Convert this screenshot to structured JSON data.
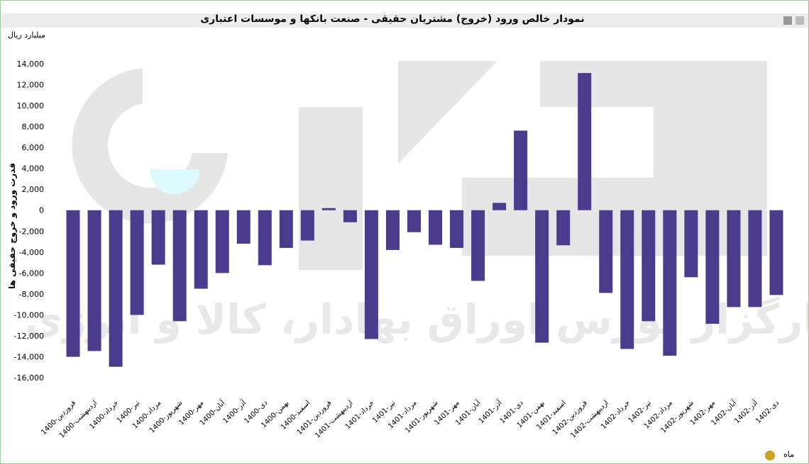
{
  "chart_data": {
    "type": "bar",
    "title": "نمودار خالص ورود (خروج) مشتریان حقیقی - صنعت بانکها و موسسات اعتباری",
    "unit_label": "میلیارد ریال",
    "y_label": "قدرت ورود و خروج حقیقی ها",
    "x_label": "ماه",
    "watermark": "کارگزار بورس اوراق بهادار، کالا و انرژی",
    "color": "#4b3b8c",
    "categories": [
      "1400-فروردین",
      "1400-اردیبهشت",
      "1400-خرداد",
      "1400-تیر",
      "1400-مرداد",
      "1400-شهریور",
      "1400-مهر",
      "1400-آبان",
      "1400-آذر",
      "1400-دی",
      "1400-بهمن",
      "1400-اسفند",
      "1401-فروردین",
      "1401-اردیبهشت",
      "1401-خرداد",
      "1401-تیر",
      "1401-مرداد",
      "1401-شهریور",
      "1401-مهر",
      "1401-آبان",
      "1401-آذر",
      "1401-دی",
      "1401-بهمن",
      "1401-اسفند",
      "1402-فروردین",
      "1402-اردیبهشت",
      "1402-خرداد",
      "1402-تیر",
      "1402-مرداد",
      "1402-شهریور",
      "1402-مهر",
      "1402-آبان",
      "1402-آذر",
      "1402-دی"
    ],
    "values": [
      -14000,
      -13450,
      -14950,
      -10000,
      -5200,
      -10600,
      -7500,
      -6000,
      -3200,
      -5250,
      -3600,
      -2900,
      200,
      -1150,
      -12300,
      -3800,
      -2100,
      -3300,
      -3600,
      -6750,
      700,
      7600,
      -12650,
      -3350,
      13100,
      -7900,
      -13250,
      -10600,
      -13900,
      -6400,
      -10850,
      -9250,
      -9250,
      -8100
    ],
    "ylim": [
      -17000,
      15000
    ],
    "yticks": [
      {
        "value": -16000,
        "label": "-16,000"
      },
      {
        "value": -14000,
        "label": "-14,000"
      },
      {
        "value": -12000,
        "label": "-12,000"
      },
      {
        "value": -10000,
        "label": "-10,000"
      },
      {
        "value": -8000,
        "label": "-8,000"
      },
      {
        "value": -6000,
        "label": "-6,000"
      },
      {
        "value": -4000,
        "label": "-4,000"
      },
      {
        "value": -2000,
        "label": "-2,000"
      },
      0,
      {
        "value": 2000,
        "label": "2,000"
      },
      {
        "value": 4000,
        "label": "4,000"
      },
      {
        "value": 6000,
        "label": "6,000"
      },
      {
        "value": 8000,
        "label": "8,000"
      },
      {
        "value": 10000,
        "label": "10,000"
      },
      {
        "value": 12000,
        "label": "12,000"
      },
      {
        "value": 14000,
        "label": "14,000"
      }
    ]
  }
}
